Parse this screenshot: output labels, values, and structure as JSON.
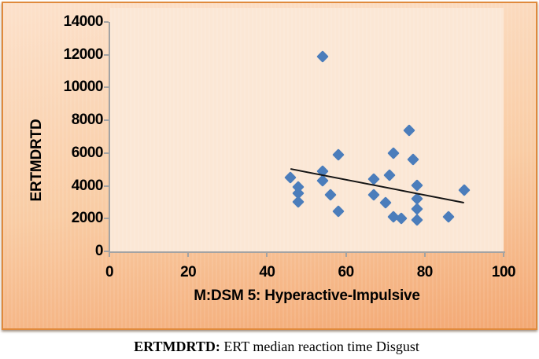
{
  "chart": {
    "frame_border_color": "#E08A3C",
    "frame_bg_top": "#FCE1CB",
    "frame_bg_bottom": "#F3A873",
    "plot_bg": "#FBE7D5",
    "axis_color": "#A3A3A3",
    "text_color": "#000000"
  },
  "chart_data": {
    "type": "scatter",
    "title": "",
    "xlabel": "M:DSM 5: Hyperactive-Impulsive",
    "ylabel": "ERTMDRTD",
    "xlim": [
      0,
      100
    ],
    "ylim": [
      0,
      14000
    ],
    "xticks": [
      0,
      20,
      40,
      60,
      80,
      100
    ],
    "yticks": [
      0,
      2000,
      4000,
      6000,
      8000,
      10000,
      12000,
      14000
    ],
    "grid": false,
    "legend": null,
    "marker": {
      "shape": "diamond",
      "color": "#4B7DBB"
    },
    "points": [
      [
        54,
        11900
      ],
      [
        76,
        7400
      ],
      [
        72,
        6000
      ],
      [
        58,
        5900
      ],
      [
        77,
        5600
      ],
      [
        54,
        4900
      ],
      [
        71,
        4650
      ],
      [
        46,
        4500
      ],
      [
        67,
        4400
      ],
      [
        54,
        4300
      ],
      [
        78,
        4050
      ],
      [
        48,
        3950
      ],
      [
        90,
        3750
      ],
      [
        48,
        3550
      ],
      [
        56,
        3450
      ],
      [
        67,
        3450
      ],
      [
        78,
        3200
      ],
      [
        48,
        3000
      ],
      [
        70,
        2950
      ],
      [
        78,
        2600
      ],
      [
        58,
        2450
      ],
      [
        72,
        2100
      ],
      [
        86,
        2100
      ],
      [
        74,
        2000
      ],
      [
        78,
        1900
      ]
    ],
    "trendline": {
      "x1": 46,
      "y1": 5010,
      "x2": 90,
      "y2": 2950,
      "color": "#141414"
    }
  },
  "caption": {
    "term": "ERTMDRTD:",
    "definition": " ERT median reaction time Disgust"
  }
}
